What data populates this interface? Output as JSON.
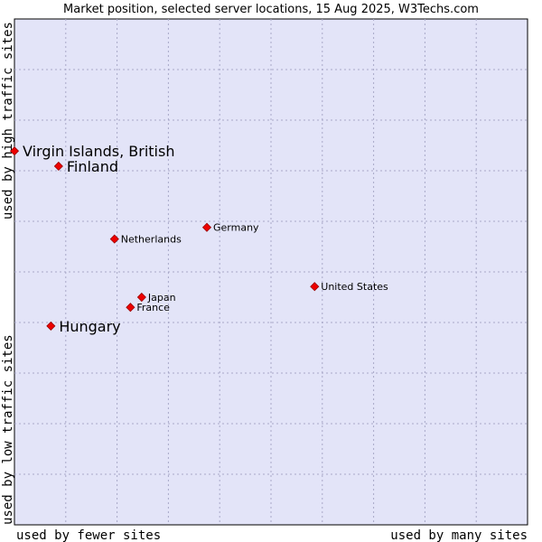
{
  "chart_data": {
    "type": "scatter",
    "title": "Market position, selected server locations, 15 Aug 2025, W3Techs.com",
    "xlabel_left": "used by fewer sites",
    "xlabel_right": "used by many sites",
    "ylabel_top": "used by high traffic sites",
    "ylabel_bottom": "used by low traffic sites",
    "xlim": [
      0,
      100
    ],
    "ylim": [
      0,
      100
    ],
    "grid": true,
    "colors": {
      "plot_background": "#e3e4f8",
      "grid": "#a8a8c8",
      "marker": "#ee0000",
      "marker_edge": "#990000"
    },
    "points": [
      {
        "label": "Virgin Islands, British",
        "x": 0.0,
        "y": 73.9,
        "emphasis": true
      },
      {
        "label": "Finland",
        "x": 8.6,
        "y": 70.9,
        "emphasis": true
      },
      {
        "label": "Germany",
        "x": 37.5,
        "y": 58.8,
        "emphasis": false
      },
      {
        "label": "Netherlands",
        "x": 19.5,
        "y": 56.5,
        "emphasis": false
      },
      {
        "label": "United States",
        "x": 58.5,
        "y": 47.1,
        "emphasis": false
      },
      {
        "label": "Japan",
        "x": 24.8,
        "y": 45.0,
        "emphasis": false
      },
      {
        "label": "France",
        "x": 22.6,
        "y": 43.0,
        "emphasis": false
      },
      {
        "label": "Hungary",
        "x": 7.1,
        "y": 39.3,
        "emphasis": true
      }
    ]
  }
}
